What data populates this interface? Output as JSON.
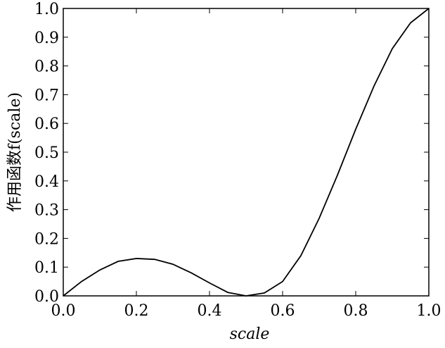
{
  "chart_data": {
    "type": "line",
    "x_label": "scale",
    "y_label": "作用函数f(scale)",
    "x": [
      0,
      0.05,
      0.1,
      0.15,
      0.2,
      0.25,
      0.3,
      0.35,
      0.4,
      0.45,
      0.5,
      0.55,
      0.6,
      0.65,
      0.7,
      0.75,
      0.8,
      0.85,
      0.9,
      0.95,
      1.0
    ],
    "series": [
      {
        "color": "#000000",
        "values": [
          0,
          0.05,
          0.09,
          0.12,
          0.13,
          0.127,
          0.11,
          0.08,
          0.045,
          0.012,
          0,
          0.01,
          0.05,
          0.14,
          0.27,
          0.42,
          0.58,
          0.73,
          0.86,
          0.95,
          1.0
        ]
      }
    ],
    "xlim": [
      0,
      1
    ],
    "ylim": [
      0,
      1
    ],
    "xticks": [
      {
        "value": 0,
        "label": "0.0"
      },
      0.2,
      0.4,
      0.6,
      0.8,
      {
        "value": 1,
        "label": "1.0"
      }
    ],
    "yticks": [
      {
        "value": 0,
        "label": "0.0"
      },
      0.1,
      0.2,
      0.3,
      0.4,
      0.5,
      0.6,
      0.7,
      0.8,
      0.9,
      {
        "value": 1,
        "label": "1.0"
      }
    ]
  }
}
